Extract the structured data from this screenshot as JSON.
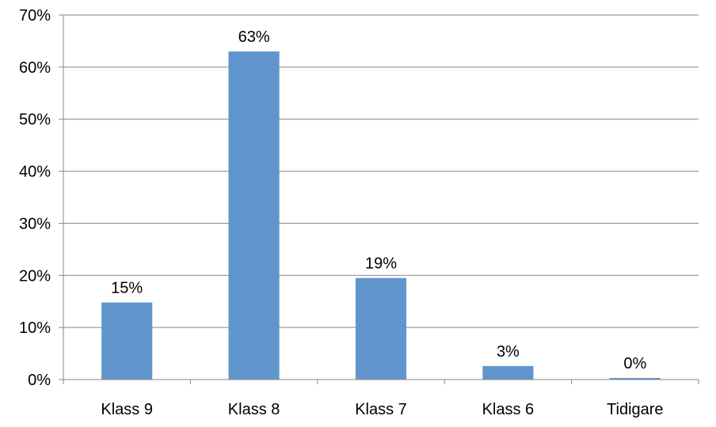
{
  "chart_data": {
    "type": "bar",
    "categories": [
      "Klass 9",
      "Klass 8",
      "Klass 7",
      "Klass 6",
      "Tidigare"
    ],
    "values": [
      15,
      63,
      19,
      3,
      0
    ],
    "rendered_values": [
      14.8,
      63,
      19.5,
      2.6,
      0.3
    ],
    "data_labels": [
      "15%",
      "63%",
      "19%",
      "3%",
      "0%"
    ],
    "yticks": [
      {
        "value": 0,
        "label": "0%"
      },
      {
        "value": 10,
        "label": "10%"
      },
      {
        "value": 20,
        "label": "20%"
      },
      {
        "value": 30,
        "label": "30%"
      },
      {
        "value": 40,
        "label": "40%"
      },
      {
        "value": 50,
        "label": "50%"
      },
      {
        "value": 60,
        "label": "60%"
      },
      {
        "value": 70,
        "label": "70%"
      }
    ],
    "ylim": [
      0,
      70
    ],
    "title": "",
    "xlabel": "",
    "ylabel": "",
    "grid": "horizontal",
    "legend": "none",
    "colors": {
      "bar": "#6096CC",
      "grid": "#868686",
      "axis": "#868686"
    }
  }
}
